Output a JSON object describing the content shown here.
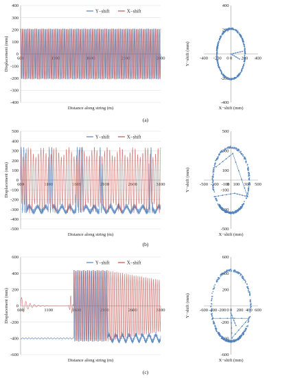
{
  "chart_data": [
    {
      "type": "line",
      "panel": "(a)",
      "xlabel": "Distance along string (m)",
      "ylabel": "Displacement (mm)",
      "xlim": [
        600,
        2600
      ],
      "ylim": [
        -400,
        400
      ],
      "xticks": [
        600,
        1100,
        1600,
        2100,
        2600
      ],
      "yticks": [
        400,
        300,
        200,
        100,
        0,
        -100,
        -200,
        -300,
        -400
      ],
      "grid": "horizontal",
      "legend": "top",
      "series": [
        {
          "name": "Y−shift",
          "color": "#4f81bd",
          "approx": "oscillation between about -210 and +210 mm along the whole string, about 80 cycles"
        },
        {
          "name": "X−shift",
          "color": "#c0504d",
          "approx": "oscillation between about -210 and +210 mm, phase shifted from Y−shift"
        }
      ]
    },
    {
      "type": "scatter",
      "panel": "(a)",
      "xlabel": "X−shift (mm)",
      "ylabel": "Y−shift (mm)",
      "xlim": [
        -400,
        400
      ],
      "ylim": [
        -400,
        400
      ],
      "xticks": [
        -400,
        -200,
        0,
        200,
        400
      ],
      "yticks": [
        400,
        200,
        0,
        -200,
        -400
      ],
      "series": [
        {
          "color": "#4f81bd",
          "approx": "points along a circle of radius about 210 mm"
        }
      ]
    },
    {
      "type": "line",
      "panel": "(b)",
      "xlabel": "Distance along string (m)",
      "ylabel": "Displacement (mm)",
      "xlim": [
        600,
        3100
      ],
      "ylim": [
        -500,
        500
      ],
      "xticks": [
        600,
        1100,
        1600,
        2100,
        2600,
        3100
      ],
      "yticks": [
        500,
        400,
        300,
        200,
        100,
        0,
        -100,
        -200,
        -300,
        -400,
        -500
      ],
      "grid": "horizontal",
      "legend": "top",
      "series": [
        {
          "name": "Y−shift",
          "color": "#4f81bd",
          "approx": "mostly between -330 and -200 mm with bursts up to +340 mm"
        },
        {
          "name": "X−shift",
          "color": "#c0504d",
          "approx": "oscillation between about -340 and +340 mm"
        }
      ]
    },
    {
      "type": "scatter",
      "panel": "(b)",
      "xlabel": "X−shift (mm)",
      "ylabel": "Y−shift (mm)",
      "xlim": [
        -500,
        500
      ],
      "ylim": [
        -500,
        500
      ],
      "xticks": [
        -500,
        -300,
        -100,
        100,
        300,
        500
      ],
      "yticks": [
        500,
        300,
        100,
        -100,
        -300,
        -500
      ],
      "series": [
        {
          "color": "#4f81bd",
          "approx": "points along a circle of radius about 340 mm, densest near the bottom"
        }
      ]
    },
    {
      "type": "line",
      "panel": "(c)",
      "xlabel": "Distance along string (m)",
      "ylabel": "Displacement (mm)",
      "xlim": [
        600,
        3100
      ],
      "ylim": [
        -600,
        600
      ],
      "xticks": [
        600,
        1100,
        1600,
        2100,
        2600,
        3100
      ],
      "yticks": [
        600,
        400,
        200,
        0,
        -200,
        -400,
        -600
      ],
      "grid": "horizontal",
      "legend": "top",
      "series": [
        {
          "name": "Y−shift",
          "color": "#4f81bd",
          "approx": "about -400 mm from 600 to 1550 m, then oscillating between -440 and +440 mm"
        },
        {
          "name": "X−shift",
          "color": "#c0504d",
          "approx": "damped oscillation near 0 until 1550 m, then between -440 and +440 mm"
        }
      ]
    },
    {
      "type": "scatter",
      "panel": "(c)",
      "xlabel": "X−shift (mm)",
      "ylabel": "Y−shift (mm)",
      "xlim": [
        -600,
        600
      ],
      "ylim": [
        -600,
        600
      ],
      "xticks": [
        -600,
        -400,
        -200,
        0,
        200,
        400,
        600
      ],
      "yticks": [
        600,
        400,
        200,
        0,
        -200,
        -400,
        -600
      ],
      "series": [
        {
          "color": "#4f81bd",
          "approx": "points along a circle of radius about 440 mm, densest near the bottom"
        }
      ]
    }
  ],
  "panel_labels": [
    "(a)",
    "(b)",
    "(c)"
  ]
}
